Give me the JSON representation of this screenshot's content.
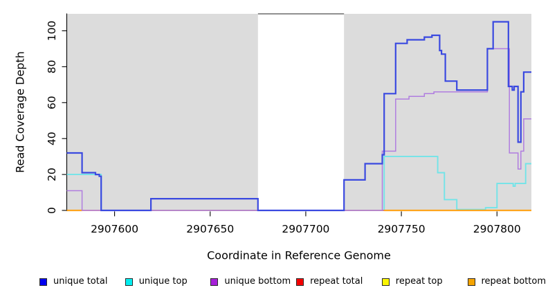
{
  "chart_data": {
    "type": "step-line",
    "title": "",
    "xlabel": "Coordinate in Reference Genome",
    "ylabel": "Read Coverage Depth",
    "xlim": [
      2907575,
      2907818
    ],
    "ylim": [
      0,
      109
    ],
    "x_ticks": [
      2907600,
      2907650,
      2907700,
      2907750,
      2907800
    ],
    "y_ticks": [
      0,
      20,
      40,
      60,
      80,
      100
    ],
    "grid": false,
    "legend_position": "bottom",
    "background": {
      "shaded_color": "#dcdcdc",
      "shaded_regions": [
        [
          2907575,
          2907675
        ],
        [
          2907720,
          2907818
        ]
      ],
      "unshaded_region": [
        2907675,
        2907720
      ],
      "top_border_color": "#6a6a6a"
    },
    "series": [
      {
        "name": "unique total",
        "line_color": "#3a49e0",
        "legend_color": "#0000f0",
        "line_width": 2.2,
        "points": [
          [
            2907575,
            32
          ],
          [
            2907583,
            21
          ],
          [
            2907590,
            20
          ],
          [
            2907592,
            19
          ],
          [
            2907593,
            0
          ],
          [
            2907619,
            6.5
          ],
          [
            2907675,
            0
          ],
          [
            2907720,
            17
          ],
          [
            2907731,
            26
          ],
          [
            2907740,
            31
          ],
          [
            2907741,
            65
          ],
          [
            2907747,
            93
          ],
          [
            2907753,
            95
          ],
          [
            2907762,
            96.5
          ],
          [
            2907766,
            97.5
          ],
          [
            2907770,
            89
          ],
          [
            2907771,
            87
          ],
          [
            2907773,
            72
          ],
          [
            2907779,
            67
          ],
          [
            2907795,
            90
          ],
          [
            2907798,
            105
          ],
          [
            2907806,
            69
          ],
          [
            2907808,
            67
          ],
          [
            2907809,
            69
          ],
          [
            2907811,
            38
          ],
          [
            2907812.5,
            66
          ],
          [
            2907814,
            77
          ]
        ]
      },
      {
        "name": "unique top",
        "line_color": "#72e4e8",
        "legend_color": "#00eef0",
        "line_width": 1.9,
        "points": [
          [
            2907575,
            20
          ],
          [
            2907593,
            0
          ],
          [
            2907741,
            30
          ],
          [
            2907769,
            21
          ],
          [
            2907772.5,
            6
          ],
          [
            2907779,
            0.5
          ],
          [
            2907794,
            1.5
          ],
          [
            2907800,
            15
          ],
          [
            2907808.5,
            13.5
          ],
          [
            2907809.5,
            15
          ],
          [
            2907815,
            26
          ]
        ]
      },
      {
        "name": "unique bottom",
        "line_color": "#b07ddf",
        "legend_color": "#a61fd8",
        "line_width": 1.5,
        "points": [
          [
            2907575,
            11
          ],
          [
            2907583,
            0
          ],
          [
            2907740,
            33
          ],
          [
            2907747,
            62
          ],
          [
            2907754,
            63.5
          ],
          [
            2907762,
            65
          ],
          [
            2907767,
            66
          ],
          [
            2907795,
            90
          ],
          [
            2907806.5,
            32
          ],
          [
            2907811,
            23
          ],
          [
            2907812.5,
            33
          ],
          [
            2907814,
            51
          ]
        ]
      },
      {
        "name": "repeat total",
        "line_color": "#dd5f76",
        "legend_color": "#f40000",
        "line_width": 1.4,
        "points": [
          [
            2907575,
            0
          ]
        ]
      },
      {
        "name": "repeat top",
        "line_color": "#f5ef30",
        "legend_color": "#faf500",
        "line_width": 1.4,
        "points": [
          [
            2907575,
            0
          ]
        ]
      },
      {
        "name": "repeat bottom",
        "line_color": "#ffa51e",
        "legend_color": "#f5a400",
        "line_width": 2.3,
        "points": [
          [
            2907575,
            0
          ]
        ],
        "visible_ranges": [
          [
            2907575,
            2907583
          ],
          [
            2907741,
            2907818
          ]
        ]
      }
    ],
    "draw_order": [
      "unique top",
      "repeat top",
      "repeat total",
      "repeat bottom",
      "unique bottom",
      "unique total"
    ]
  }
}
